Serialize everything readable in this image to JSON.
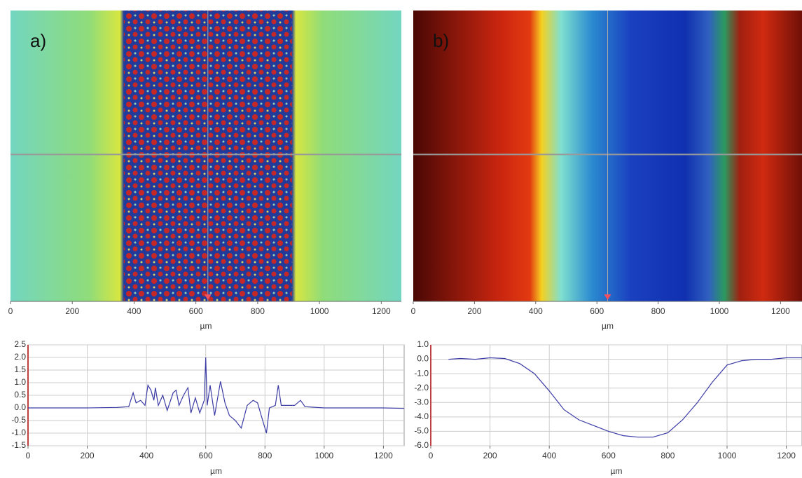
{
  "chart_data": [
    {
      "type": "image",
      "label": "a)",
      "xlabel": "µm",
      "xlim": [
        0,
        1265
      ],
      "xticks": [
        0,
        200,
        400,
        600,
        800,
        1000,
        1200
      ]
    },
    {
      "type": "image",
      "label": "b)",
      "xlabel": "µm",
      "xlim": [
        0,
        1270
      ],
      "xticks": [
        0,
        200,
        400,
        600,
        800,
        1000,
        1200
      ]
    },
    {
      "type": "line",
      "xlabel": "µm",
      "color": "#3b3ba6",
      "grid": true,
      "xlim": [
        0,
        1270
      ],
      "xticks": [
        0,
        200,
        400,
        600,
        800,
        1000,
        1200
      ],
      "ylim": [
        -1.5,
        2.5
      ],
      "yticks": [
        2.5,
        {
          "value": 2,
          "label": "2.0"
        },
        1.5,
        {
          "value": 1,
          "label": "1.0"
        },
        0.5,
        {
          "value": 0,
          "label": "0.0"
        },
        -0.5,
        {
          "value": -1,
          "label": "-1.0"
        },
        -1.5
      ],
      "x": [
        0,
        100,
        200,
        300,
        340,
        355,
        365,
        380,
        395,
        405,
        415,
        425,
        430,
        440,
        455,
        470,
        490,
        500,
        510,
        525,
        540,
        550,
        565,
        580,
        595,
        600,
        605,
        615,
        630,
        650,
        665,
        680,
        700,
        720,
        740,
        760,
        775,
        790,
        805,
        815,
        835,
        845,
        855,
        875,
        900,
        920,
        935,
        1000,
        1100,
        1200,
        1270
      ],
      "values": [
        0,
        0,
        0,
        0.02,
        0.05,
        0.6,
        0.2,
        0.3,
        0.1,
        0.9,
        0.7,
        0.3,
        0.8,
        0.1,
        0.5,
        -0.1,
        0.6,
        0.7,
        0.1,
        0.5,
        0.8,
        -0.2,
        0.4,
        -0.2,
        0.3,
        2.0,
        0.1,
        0.9,
        -0.3,
        1.05,
        0.2,
        -0.3,
        -0.5,
        -0.8,
        0.1,
        0.3,
        0.2,
        -0.4,
        -1.0,
        0.0,
        0.1,
        0.9,
        0.1,
        0.1,
        0.1,
        0.3,
        0.05,
        0,
        0,
        0,
        -0.02
      ]
    },
    {
      "type": "line",
      "xlabel": "µm",
      "color": "#3b3ba6",
      "grid": true,
      "xlim": [
        0,
        1253
      ],
      "xticks": [
        0,
        200,
        400,
        600,
        800,
        1000,
        1200
      ],
      "ylim": [
        -6,
        1
      ],
      "yticks": [
        {
          "value": 1,
          "label": "1.0"
        },
        {
          "value": 0,
          "label": "0.0"
        },
        {
          "value": -1,
          "label": "-1.0"
        },
        {
          "value": -2,
          "label": "-2.0"
        },
        {
          "value": -3,
          "label": "-3.0"
        },
        {
          "value": -4,
          "label": "-4.0"
        },
        {
          "value": -5,
          "label": "-5.0"
        },
        {
          "value": -6,
          "label": "-6.0"
        }
      ],
      "x": [
        60,
        100,
        150,
        200,
        250,
        300,
        350,
        400,
        450,
        500,
        550,
        600,
        650,
        700,
        750,
        800,
        850,
        900,
        950,
        1000,
        1050,
        1100,
        1150,
        1200,
        1253
      ],
      "values": [
        0,
        0.05,
        0,
        0.1,
        0.05,
        -0.3,
        -1.0,
        -2.2,
        -3.5,
        -4.2,
        -4.6,
        -5.0,
        -5.3,
        -5.4,
        -5.4,
        -5.1,
        -4.2,
        -3.0,
        -1.6,
        -0.4,
        -0.1,
        0,
        0,
        0.1,
        0.1
      ]
    }
  ]
}
